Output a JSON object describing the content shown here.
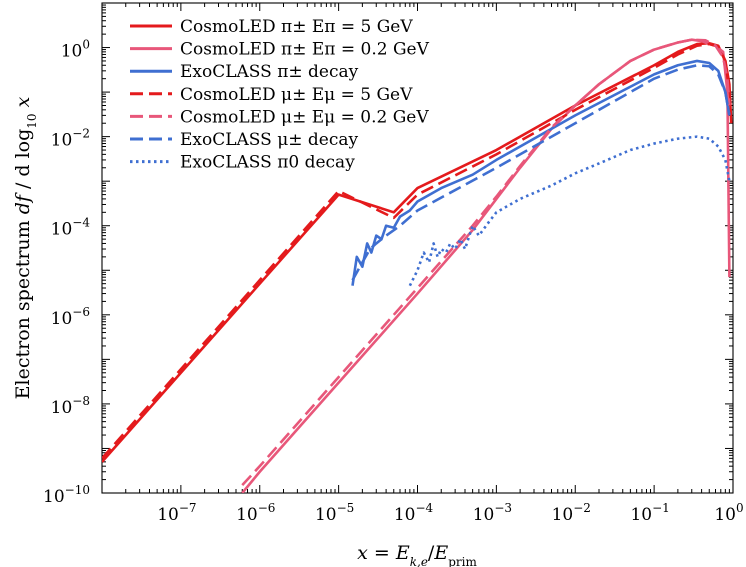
{
  "chart_data": {
    "type": "line",
    "title": "",
    "xlabel": "x = E_{k,e}/E_prim",
    "ylabel": "Electron spectrum df/dlog10 x",
    "x_scale": "log",
    "y_scale": "log",
    "xlim": [
      1e-08,
      1
    ],
    "ylim": [
      1e-10,
      10.0
    ],
    "grid": false,
    "legend_position": "top-left",
    "x_tick_labels": [
      "10^-7",
      "10^-6",
      "10^-5",
      "10^-4",
      "10^-3",
      "10^-2",
      "10^-1",
      "10^0"
    ],
    "y_tick_labels": [
      "10^-10",
      "10^-8",
      "10^-6",
      "10^-4",
      "10^-2",
      "10^0"
    ],
    "series": [
      {
        "name": "CosmoLED π± Eπ = 5 GeV",
        "color": "#e41a1c",
        "dash": "solid",
        "points": [
          [
            1e-08,
            5e-10
          ],
          [
            1e-07,
            5e-08
          ],
          [
            1e-06,
            5e-06
          ],
          [
            1e-05,
            0.0005
          ],
          [
            5e-05,
            0.0002
          ],
          [
            0.0001,
            0.0007
          ],
          [
            0.001,
            0.005
          ],
          [
            0.01,
            0.05
          ],
          [
            0.1,
            0.4
          ],
          [
            0.2,
            0.8
          ],
          [
            0.35,
            1.2
          ],
          [
            0.5,
            1.25
          ],
          [
            0.65,
            1.1
          ],
          [
            0.8,
            0.5
          ],
          [
            0.9,
            0.15
          ],
          [
            0.95,
            0.02
          ]
        ]
      },
      {
        "name": "CosmoLED π± Eπ = 0.2 GeV",
        "color": "#e8577a",
        "dash": "solid",
        "points": [
          [
            6e-07,
            1e-10
          ],
          [
            1e-06,
            3e-10
          ],
          [
            1e-05,
            3e-08
          ],
          [
            0.0001,
            3e-06
          ],
          [
            0.0005,
            8e-05
          ],
          [
            0.001,
            0.0004
          ],
          [
            0.002,
            0.002
          ],
          [
            0.005,
            0.015
          ],
          [
            0.01,
            0.05
          ],
          [
            0.02,
            0.15
          ],
          [
            0.05,
            0.5
          ],
          [
            0.1,
            0.9
          ],
          [
            0.2,
            1.3
          ],
          [
            0.3,
            1.5
          ],
          [
            0.4,
            1.4
          ],
          [
            0.5,
            1.2
          ],
          [
            0.6,
            1.1
          ],
          [
            0.75,
            0.8
          ],
          [
            0.85,
            0.1
          ],
          [
            0.9,
            7e-06
          ]
        ]
      },
      {
        "name": "ExoCLASS π± decay",
        "color": "#3f6fd1",
        "dash": "solid",
        "points": [
          [
            1.5e-05,
            4.5e-06
          ],
          [
            1.7e-05,
            2e-05
          ],
          [
            2e-05,
            1.2e-05
          ],
          [
            2.3e-05,
            4e-05
          ],
          [
            2.6e-05,
            2.5e-05
          ],
          [
            3e-05,
            6e-05
          ],
          [
            3.5e-05,
            5e-05
          ],
          [
            4e-05,
            0.0001
          ],
          [
            5e-05,
            9e-05
          ],
          [
            6e-05,
            0.00016
          ],
          [
            8e-05,
            0.00022
          ],
          [
            0.0001,
            0.00035
          ],
          [
            0.0002,
            0.0007
          ],
          [
            0.0005,
            0.0014
          ],
          [
            0.001,
            0.003
          ],
          [
            0.01,
            0.03
          ],
          [
            0.1,
            0.25
          ],
          [
            0.2,
            0.4
          ],
          [
            0.35,
            0.5
          ],
          [
            0.5,
            0.45
          ],
          [
            0.65,
            0.3
          ],
          [
            0.8,
            0.1
          ],
          [
            0.9,
            0.03
          ]
        ]
      },
      {
        "name": "CosmoLED μ± Eμ = 5 GeV",
        "color": "#e41a1c",
        "dash": "dashed",
        "points": [
          [
            1e-08,
            6e-10
          ],
          [
            1e-07,
            6e-08
          ],
          [
            1e-06,
            6e-06
          ],
          [
            1e-05,
            0.0006
          ],
          [
            5e-05,
            0.00015
          ],
          [
            0.0001,
            0.0005
          ],
          [
            0.001,
            0.004
          ],
          [
            0.01,
            0.04
          ],
          [
            0.1,
            0.35
          ],
          [
            0.2,
            0.7
          ],
          [
            0.35,
            1.1
          ],
          [
            0.5,
            1.2
          ],
          [
            0.65,
            1.05
          ],
          [
            0.8,
            0.5
          ],
          [
            0.9,
            0.1
          ]
        ]
      },
      {
        "name": "CosmoLED μ± Eμ = 0.2 GeV",
        "color": "#e8577a",
        "dash": "dashed",
        "points": [
          [
            6e-07,
            1.5e-10
          ],
          [
            1e-06,
            4e-10
          ],
          [
            1e-05,
            4e-08
          ],
          [
            0.0001,
            4e-06
          ],
          [
            0.0005,
            0.0001
          ],
          [
            0.001,
            0.00045
          ],
          [
            0.002,
            0.0022
          ],
          [
            0.005,
            0.016
          ],
          [
            0.01,
            0.05
          ],
          [
            0.02,
            0.15
          ],
          [
            0.05,
            0.5
          ],
          [
            0.1,
            0.9
          ],
          [
            0.2,
            1.3
          ],
          [
            0.3,
            1.5
          ],
          [
            0.45,
            1.45
          ],
          [
            0.6,
            1.1
          ],
          [
            0.75,
            0.6
          ],
          [
            0.85,
            0.2
          ],
          [
            0.9,
            0.05
          ]
        ]
      },
      {
        "name": "ExoCLASS μ± decay",
        "color": "#3f6fd1",
        "dash": "dashed",
        "points": [
          [
            1.5e-05,
            6e-06
          ],
          [
            2e-05,
            1.5e-05
          ],
          [
            2.5e-05,
            3e-05
          ],
          [
            3e-05,
            4e-05
          ],
          [
            4e-05,
            6e-05
          ],
          [
            6e-05,
            0.0001
          ],
          [
            0.0001,
            0.00022
          ],
          [
            0.001,
            0.002
          ],
          [
            0.01,
            0.02
          ],
          [
            0.1,
            0.2
          ],
          [
            0.2,
            0.32
          ],
          [
            0.35,
            0.4
          ],
          [
            0.5,
            0.38
          ],
          [
            0.65,
            0.25
          ],
          [
            0.8,
            0.1
          ],
          [
            0.9,
            0.03
          ]
        ]
      },
      {
        "name": "ExoCLASS π0 decay",
        "color": "#3f6fd1",
        "dash": "dotted",
        "points": [
          [
            8e-05,
            4.5e-06
          ],
          [
            0.0001,
            1e-05
          ],
          [
            0.00012,
            2.5e-05
          ],
          [
            0.00014,
            1.5e-05
          ],
          [
            0.00016,
            4e-05
          ],
          [
            0.00018,
            2e-05
          ],
          [
            0.0002,
            3e-05
          ],
          [
            0.00023,
            2.5e-05
          ],
          [
            0.00026,
            4e-05
          ],
          [
            0.0003,
            3e-05
          ],
          [
            0.00035,
            5e-05
          ],
          [
            0.0004,
            3e-05
          ],
          [
            0.0005,
            0.0001
          ],
          [
            0.0006,
            6e-05
          ],
          [
            0.0008,
            0.00012
          ],
          [
            0.001,
            0.0002
          ],
          [
            0.002,
            0.0004
          ],
          [
            0.005,
            0.0008
          ],
          [
            0.01,
            0.0015
          ],
          [
            0.02,
            0.0025
          ],
          [
            0.05,
            0.005
          ],
          [
            0.1,
            0.007
          ],
          [
            0.2,
            0.009
          ],
          [
            0.35,
            0.01
          ],
          [
            0.5,
            0.009
          ],
          [
            0.65,
            0.006
          ],
          [
            0.8,
            0.003
          ],
          [
            0.9,
            0.001
          ]
        ]
      }
    ]
  }
}
